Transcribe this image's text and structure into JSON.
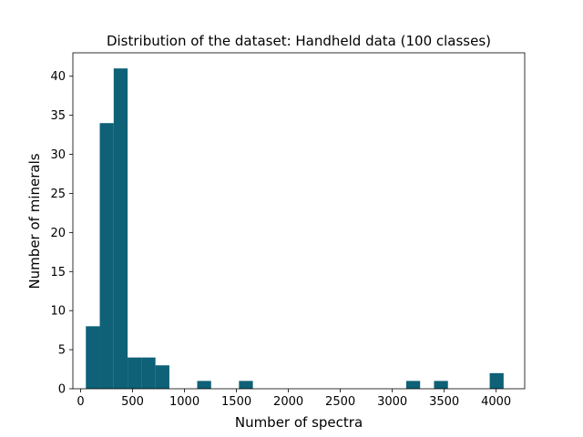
{
  "chart_data": {
    "type": "bar",
    "title": "Distribution of the dataset: Handheld data (100 classes)",
    "xlabel": "Number of spectra",
    "ylabel": "Number of minerals",
    "xlim": [
      -75,
      4275
    ],
    "ylim": [
      0,
      43
    ],
    "xticks": [
      0,
      500,
      1000,
      1500,
      2000,
      2500,
      3000,
      3500,
      4000
    ],
    "yticks": [
      0,
      5,
      10,
      15,
      20,
      25,
      30,
      35,
      40
    ],
    "bar_color": "#0e6176",
    "grid": false,
    "bins": [
      {
        "x0": 50,
        "x1": 184,
        "count": 8
      },
      {
        "x0": 184,
        "x1": 318,
        "count": 34
      },
      {
        "x0": 318,
        "x1": 452,
        "count": 41
      },
      {
        "x0": 452,
        "x1": 586,
        "count": 4
      },
      {
        "x0": 586,
        "x1": 720,
        "count": 4
      },
      {
        "x0": 720,
        "x1": 854,
        "count": 3
      },
      {
        "x0": 1122,
        "x1": 1256,
        "count": 1
      },
      {
        "x0": 1524,
        "x1": 1658,
        "count": 1
      },
      {
        "x0": 3134,
        "x1": 3268,
        "count": 1
      },
      {
        "x0": 3402,
        "x1": 3536,
        "count": 1
      },
      {
        "x0": 3938,
        "x1": 4072,
        "count": 2
      }
    ]
  }
}
